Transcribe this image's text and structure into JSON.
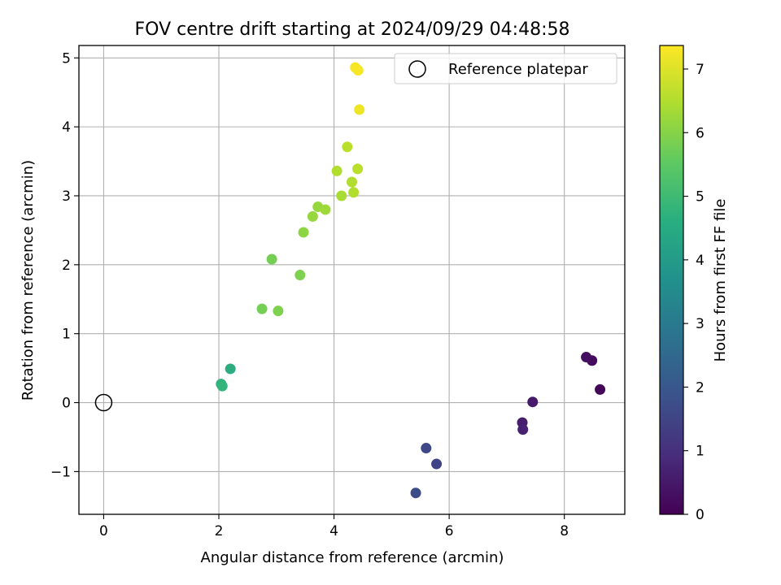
{
  "chart_data": {
    "type": "scatter",
    "title": "FOV centre drift starting at 2024/09/29 04:48:58",
    "xlabel": "Angular distance from reference (arcmin)",
    "ylabel": "Rotation from reference (arcmin)",
    "xlim": [
      -0.43,
      9.05
    ],
    "ylim": [
      -1.62,
      5.18
    ],
    "xticks": [
      0,
      2,
      4,
      6,
      8
    ],
    "yticks": [
      -1,
      0,
      1,
      2,
      3,
      4,
      5
    ],
    "xtick_labels": [
      "0",
      "2",
      "4",
      "6",
      "8"
    ],
    "ytick_labels": [
      "−1",
      "0",
      "1",
      "2",
      "3",
      "4",
      "5"
    ],
    "grid": true,
    "legend": {
      "position": "top-right",
      "entries": [
        "Reference platepar"
      ]
    },
    "colorbar": {
      "label": "Hours from first FF file",
      "colormap": "viridis",
      "range": [
        0,
        7.37
      ],
      "ticks": [
        0,
        1,
        2,
        3,
        4,
        5,
        6,
        7
      ],
      "tick_labels": [
        "0",
        "1",
        "2",
        "3",
        "4",
        "5",
        "6",
        "7"
      ]
    },
    "reference_point": {
      "x": 0,
      "y": 0,
      "label": "Reference platepar"
    },
    "points": [
      {
        "x": 8.62,
        "y": 0.19,
        "hours": 0.1
      },
      {
        "x": 8.48,
        "y": 0.61,
        "hours": 0.2
      },
      {
        "x": 8.38,
        "y": 0.66,
        "hours": 0.3
      },
      {
        "x": 7.45,
        "y": 0.01,
        "hours": 0.5
      },
      {
        "x": 7.27,
        "y": -0.29,
        "hours": 0.6
      },
      {
        "x": 7.28,
        "y": -0.39,
        "hours": 0.7
      },
      {
        "x": 5.78,
        "y": -0.89,
        "hours": 1.5
      },
      {
        "x": 5.6,
        "y": -0.66,
        "hours": 1.6
      },
      {
        "x": 5.42,
        "y": -1.31,
        "hours": 1.7
      },
      {
        "x": 2.2,
        "y": 0.49,
        "hours": 4.6
      },
      {
        "x": 2.04,
        "y": 0.27,
        "hours": 4.7
      },
      {
        "x": 2.06,
        "y": 0.24,
        "hours": 4.8
      },
      {
        "x": 2.75,
        "y": 1.36,
        "hours": 5.8
      },
      {
        "x": 3.03,
        "y": 1.33,
        "hours": 5.9
      },
      {
        "x": 3.41,
        "y": 1.85,
        "hours": 5.9
      },
      {
        "x": 2.92,
        "y": 2.08,
        "hours": 5.8
      },
      {
        "x": 3.47,
        "y": 2.47,
        "hours": 6.1
      },
      {
        "x": 3.63,
        "y": 2.7,
        "hours": 6.2
      },
      {
        "x": 3.72,
        "y": 2.84,
        "hours": 6.2
      },
      {
        "x": 3.85,
        "y": 2.8,
        "hours": 6.3
      },
      {
        "x": 4.13,
        "y": 3.0,
        "hours": 6.4
      },
      {
        "x": 4.34,
        "y": 3.05,
        "hours": 6.5
      },
      {
        "x": 4.31,
        "y": 3.2,
        "hours": 6.5
      },
      {
        "x": 4.05,
        "y": 3.36,
        "hours": 6.5
      },
      {
        "x": 4.41,
        "y": 3.39,
        "hours": 6.6
      },
      {
        "x": 4.23,
        "y": 3.71,
        "hours": 6.6
      },
      {
        "x": 4.44,
        "y": 4.25,
        "hours": 7.2
      },
      {
        "x": 4.42,
        "y": 4.82,
        "hours": 7.3
      },
      {
        "x": 4.37,
        "y": 4.86,
        "hours": 7.3
      }
    ]
  }
}
